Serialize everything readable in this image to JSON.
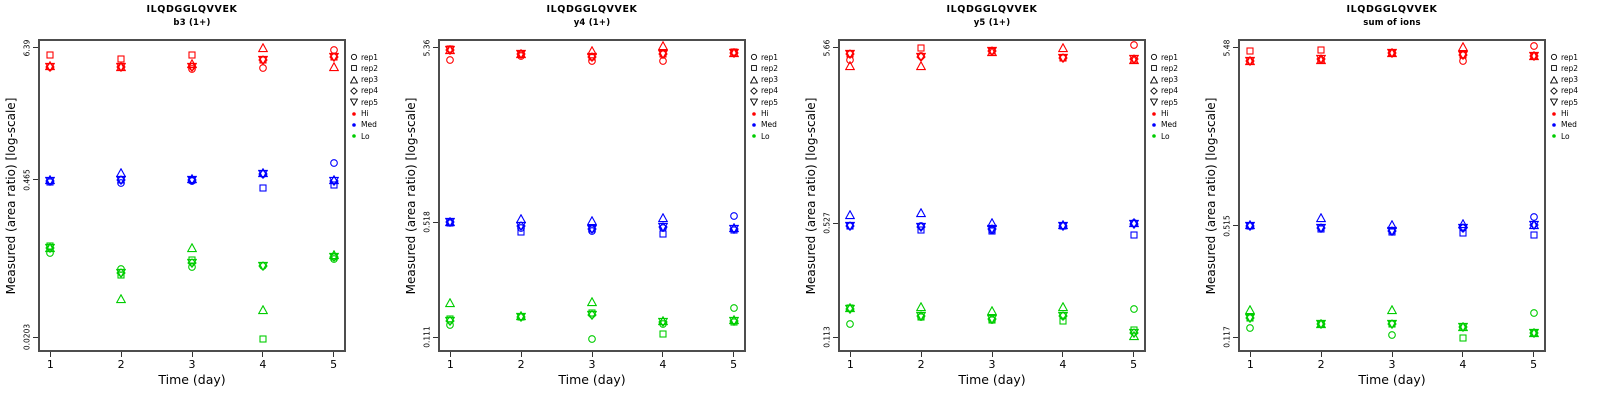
{
  "figure": {
    "background": "#ffffff",
    "box_border_color": "#4d4d4d"
  },
  "colors": {
    "Hi": "#ff0000",
    "Med": "#0000ff",
    "Lo": "#00cd00",
    "marker_black": "#000000"
  },
  "axes": {
    "ylabel": "Measured (area ratio) [log-scale]",
    "xlabel": "Time (day)",
    "x_ticks": [
      "1",
      "2",
      "3",
      "4",
      "5"
    ]
  },
  "legend": {
    "items": [
      {
        "label": "rep1",
        "marker": "circle"
      },
      {
        "label": "rep2",
        "marker": "square"
      },
      {
        "label": "rep3",
        "marker": "triangle-up"
      },
      {
        "label": "rep4",
        "marker": "diamond"
      },
      {
        "label": "rep5",
        "marker": "triangle-down"
      },
      {
        "label": "Hi",
        "marker": "dot",
        "level": "Hi"
      },
      {
        "label": "Med",
        "marker": "dot",
        "level": "Med"
      },
      {
        "label": "Lo",
        "marker": "dot",
        "level": "Lo"
      }
    ]
  },
  "chart_data": [
    {
      "type": "scatter",
      "title": "ILQDGGLQVVEK",
      "subtitle": "b3 (1+)",
      "xlabel": "Time (day)",
      "ylabel": "Measured (area ratio) [log-scale]",
      "x": [
        1,
        2,
        3,
        4,
        5
      ],
      "y_scale": "log",
      "y_ticks": [
        6.39,
        0.465,
        0.0203
      ],
      "y_tick_labels": [
        "6.39",
        "0.465",
        "0.0203"
      ],
      "series": [
        {
          "level": "Hi",
          "rep": "rep1",
          "marker": "circle",
          "values": [
            4.35,
            4.35,
            4.15,
            4.31,
            6.14
          ]
        },
        {
          "level": "Hi",
          "rep": "rep2",
          "marker": "square",
          "values": [
            5.56,
            5.14,
            5.56,
            5.04,
            5.28
          ]
        },
        {
          "level": "Hi",
          "rep": "rep3",
          "marker": "triangle-up",
          "values": [
            4.4,
            4.35,
            4.6,
            6.3,
            4.35
          ]
        },
        {
          "level": "Hi",
          "rep": "rep4",
          "marker": "diamond",
          "values": [
            4.35,
            4.35,
            4.35,
            5.0,
            5.28
          ]
        },
        {
          "level": "Hi",
          "rep": "rep5",
          "marker": "triangle-down",
          "values": [
            4.35,
            4.35,
            4.35,
            5.0,
            5.28
          ]
        },
        {
          "level": "Med",
          "rep": "rep1",
          "marker": "circle",
          "values": [
            0.45,
            0.435,
            0.455,
            0.52,
            0.647
          ]
        },
        {
          "level": "Med",
          "rep": "rep2",
          "marker": "square",
          "values": [
            0.445,
            0.465,
            0.46,
            0.394,
            0.42
          ]
        },
        {
          "level": "Med",
          "rep": "rep3",
          "marker": "triangle-up",
          "values": [
            0.46,
            0.53,
            0.47,
            0.53,
            0.46
          ]
        },
        {
          "level": "Med",
          "rep": "rep4",
          "marker": "diamond",
          "values": [
            0.45,
            0.465,
            0.46,
            0.52,
            0.45
          ]
        },
        {
          "level": "Med",
          "rep": "rep5",
          "marker": "triangle-down",
          "values": [
            0.45,
            0.465,
            0.46,
            0.52,
            0.45
          ]
        },
        {
          "level": "Lo",
          "rep": "rep1",
          "marker": "circle",
          "values": [
            0.107,
            0.0786,
            0.0813,
            0.0829,
            0.096
          ]
        },
        {
          "level": "Lo",
          "rep": "rep2",
          "marker": "square",
          "values": [
            0.125,
            0.0698,
            0.0935,
            0.0197,
            0.099
          ]
        },
        {
          "level": "Lo",
          "rep": "rep3",
          "marker": "triangle-up",
          "values": [
            0.12,
            0.0434,
            0.119,
            0.0345,
            0.103
          ]
        },
        {
          "level": "Lo",
          "rep": "rep4",
          "marker": "diamond",
          "values": [
            0.118,
            0.073,
            0.088,
            0.083,
            0.099
          ]
        },
        {
          "level": "Lo",
          "rep": "rep5",
          "marker": "triangle-down",
          "values": [
            0.118,
            0.073,
            0.088,
            0.083,
            0.099
          ]
        }
      ]
    },
    {
      "type": "scatter",
      "title": "ILQDGGLQVVEK",
      "subtitle": "y4 (1+)",
      "xlabel": "Time (day)",
      "ylabel": "Measured (area ratio) [log-scale]",
      "x": [
        1,
        2,
        3,
        4,
        5
      ],
      "y_scale": "log",
      "y_ticks": [
        5.36,
        0.518,
        0.111
      ],
      "y_tick_labels": [
        "5.36",
        "0.518",
        "0.111"
      ],
      "series": [
        {
          "level": "Hi",
          "rep": "rep1",
          "marker": "circle",
          "values": [
            4.56,
            4.8,
            4.47,
            4.5,
            5.0
          ]
        },
        {
          "level": "Hi",
          "rep": "rep2",
          "marker": "square",
          "values": [
            5.3,
            4.95,
            4.75,
            4.92,
            5.05
          ]
        },
        {
          "level": "Hi",
          "rep": "rep3",
          "marker": "triangle-up",
          "values": [
            5.2,
            4.95,
            5.11,
            5.46,
            5.0
          ]
        },
        {
          "level": "Hi",
          "rep": "rep4",
          "marker": "diamond",
          "values": [
            5.2,
            4.9,
            4.75,
            4.92,
            5.0
          ]
        },
        {
          "level": "Hi",
          "rep": "rep5",
          "marker": "triangle-down",
          "values": [
            5.2,
            4.9,
            4.75,
            4.92,
            5.0
          ]
        },
        {
          "level": "Med",
          "rep": "rep1",
          "marker": "circle",
          "values": [
            0.518,
            0.48,
            0.462,
            0.48,
            0.561
          ]
        },
        {
          "level": "Med",
          "rep": "rep2",
          "marker": "square",
          "values": [
            0.512,
            0.453,
            0.47,
            0.444,
            0.466
          ]
        },
        {
          "level": "Med",
          "rep": "rep3",
          "marker": "triangle-up",
          "values": [
            0.52,
            0.541,
            0.528,
            0.547,
            0.48
          ]
        },
        {
          "level": "Med",
          "rep": "rep4",
          "marker": "diamond",
          "values": [
            0.518,
            0.49,
            0.47,
            0.484,
            0.473
          ]
        },
        {
          "level": "Med",
          "rep": "rep5",
          "marker": "triangle-down",
          "values": [
            0.518,
            0.49,
            0.47,
            0.484,
            0.473
          ]
        },
        {
          "level": "Lo",
          "rep": "rep1",
          "marker": "circle",
          "values": [
            0.131,
            0.146,
            0.108,
            0.133,
            0.164
          ]
        },
        {
          "level": "Lo",
          "rep": "rep2",
          "marker": "square",
          "values": [
            0.141,
            0.146,
            0.153,
            0.115,
            0.135
          ]
        },
        {
          "level": "Lo",
          "rep": "rep3",
          "marker": "triangle-up",
          "values": [
            0.175,
            0.148,
            0.178,
            0.137,
            0.14
          ]
        },
        {
          "level": "Lo",
          "rep": "rep4",
          "marker": "diamond",
          "values": [
            0.137,
            0.146,
            0.15,
            0.135,
            0.137
          ]
        },
        {
          "level": "Lo",
          "rep": "rep5",
          "marker": "triangle-down",
          "values": [
            0.137,
            0.146,
            0.15,
            0.135,
            0.137
          ]
        }
      ]
    },
    {
      "type": "scatter",
      "title": "ILQDGGLQVVEK",
      "subtitle": "y5 (1+)",
      "xlabel": "Time (day)",
      "ylabel": "Measured (area ratio) [log-scale]",
      "x": [
        1,
        2,
        3,
        4,
        5
      ],
      "y_scale": "log",
      "y_ticks": [
        5.66,
        0.527,
        0.113
      ],
      "y_tick_labels": [
        "5.66",
        "0.527",
        "0.113"
      ],
      "series": [
        {
          "level": "Hi",
          "rep": "rep1",
          "marker": "circle",
          "values": [
            4.81,
            5.04,
            5.39,
            4.92,
            5.89
          ]
        },
        {
          "level": "Hi",
          "rep": "rep2",
          "marker": "square",
          "values": [
            5.2,
            5.66,
            5.42,
            4.92,
            4.8
          ]
        },
        {
          "level": "Hi",
          "rep": "rep3",
          "marker": "triangle-up",
          "values": [
            4.4,
            4.4,
            5.35,
            5.64,
            4.8
          ]
        },
        {
          "level": "Hi",
          "rep": "rep4",
          "marker": "diamond",
          "values": [
            5.2,
            5.0,
            5.39,
            4.92,
            4.85
          ]
        },
        {
          "level": "Hi",
          "rep": "rep5",
          "marker": "triangle-down",
          "values": [
            5.2,
            5.0,
            5.39,
            4.92,
            4.85
          ]
        },
        {
          "level": "Med",
          "rep": "rep1",
          "marker": "circle",
          "values": [
            0.508,
            0.51,
            0.48,
            0.51,
            0.531
          ]
        },
        {
          "level": "Med",
          "rep": "rep2",
          "marker": "square",
          "values": [
            0.508,
            0.48,
            0.476,
            0.505,
            0.452
          ]
        },
        {
          "level": "Med",
          "rep": "rep3",
          "marker": "triangle-up",
          "values": [
            0.587,
            0.601,
            0.531,
            0.515,
            0.531
          ]
        },
        {
          "level": "Med",
          "rep": "rep4",
          "marker": "diamond",
          "values": [
            0.51,
            0.5,
            0.49,
            0.51,
            0.52
          ]
        },
        {
          "level": "Med",
          "rep": "rep5",
          "marker": "triangle-down",
          "values": [
            0.51,
            0.5,
            0.49,
            0.51,
            0.52
          ]
        },
        {
          "level": "Lo",
          "rep": "rep1",
          "marker": "circle",
          "values": [
            0.134,
            0.149,
            0.142,
            0.151,
            0.166
          ]
        },
        {
          "level": "Lo",
          "rep": "rep2",
          "marker": "square",
          "values": [
            0.167,
            0.149,
            0.142,
            0.141,
            0.124
          ]
        },
        {
          "level": "Lo",
          "rep": "rep3",
          "marker": "triangle-up",
          "values": [
            0.167,
            0.17,
            0.16,
            0.169,
            0.114
          ]
        },
        {
          "level": "Lo",
          "rep": "rep4",
          "marker": "diamond",
          "values": [
            0.165,
            0.15,
            0.145,
            0.15,
            0.12
          ]
        },
        {
          "level": "Lo",
          "rep": "rep5",
          "marker": "triangle-down",
          "values": [
            0.165,
            0.15,
            0.145,
            0.15,
            0.12
          ]
        }
      ]
    },
    {
      "type": "scatter",
      "title": "ILQDGGLQVVEK",
      "subtitle": "sum of ions",
      "xlabel": "Time (day)",
      "ylabel": "Measured (area ratio) [log-scale]",
      "x": [
        1,
        2,
        3,
        4,
        5
      ],
      "y_scale": "log",
      "y_ticks": [
        5.48,
        0.515,
        0.117
      ],
      "y_tick_labels": [
        "5.48",
        "0.515",
        "0.117"
      ],
      "series": [
        {
          "level": "Hi",
          "rep": "rep1",
          "marker": "circle",
          "values": [
            4.57,
            4.67,
            5.11,
            4.6,
            5.58
          ]
        },
        {
          "level": "Hi",
          "rep": "rep2",
          "marker": "square",
          "values": [
            5.22,
            5.33,
            5.13,
            4.95,
            4.89
          ]
        },
        {
          "level": "Hi",
          "rep": "rep3",
          "marker": "triangle-up",
          "values": [
            4.57,
            4.67,
            5.08,
            5.51,
            4.89
          ]
        },
        {
          "level": "Hi",
          "rep": "rep4",
          "marker": "diamond",
          "values": [
            4.6,
            4.7,
            5.11,
            4.95,
            4.9
          ]
        },
        {
          "level": "Hi",
          "rep": "rep5",
          "marker": "triangle-down",
          "values": [
            4.6,
            4.7,
            5.11,
            4.95,
            4.9
          ]
        },
        {
          "level": "Med",
          "rep": "rep1",
          "marker": "circle",
          "values": [
            0.515,
            0.5,
            0.478,
            0.497,
            0.578
          ]
        },
        {
          "level": "Med",
          "rep": "rep2",
          "marker": "square",
          "values": [
            0.512,
            0.495,
            0.475,
            0.464,
            0.457
          ]
        },
        {
          "level": "Med",
          "rep": "rep3",
          "marker": "triangle-up",
          "values": [
            0.518,
            0.57,
            0.517,
            0.528,
            0.517
          ]
        },
        {
          "level": "Med",
          "rep": "rep4",
          "marker": "diamond",
          "values": [
            0.515,
            0.5,
            0.48,
            0.5,
            0.52
          ]
        },
        {
          "level": "Med",
          "rep": "rep5",
          "marker": "triangle-down",
          "values": [
            0.515,
            0.5,
            0.48,
            0.5,
            0.52
          ]
        },
        {
          "level": "Lo",
          "rep": "rep1",
          "marker": "circle",
          "values": [
            0.131,
            0.139,
            0.12,
            0.134,
            0.16
          ]
        },
        {
          "level": "Lo",
          "rep": "rep2",
          "marker": "square",
          "values": [
            0.15,
            0.139,
            0.14,
            0.116,
            0.123
          ]
        },
        {
          "level": "Lo",
          "rep": "rep3",
          "marker": "triangle-up",
          "values": [
            0.168,
            0.14,
            0.168,
            0.134,
            0.123
          ]
        },
        {
          "level": "Lo",
          "rep": "rep4",
          "marker": "diamond",
          "values": [
            0.15,
            0.139,
            0.14,
            0.134,
            0.123
          ]
        },
        {
          "level": "Lo",
          "rep": "rep5",
          "marker": "triangle-down",
          "values": [
            0.15,
            0.139,
            0.14,
            0.134,
            0.123
          ]
        }
      ]
    }
  ]
}
